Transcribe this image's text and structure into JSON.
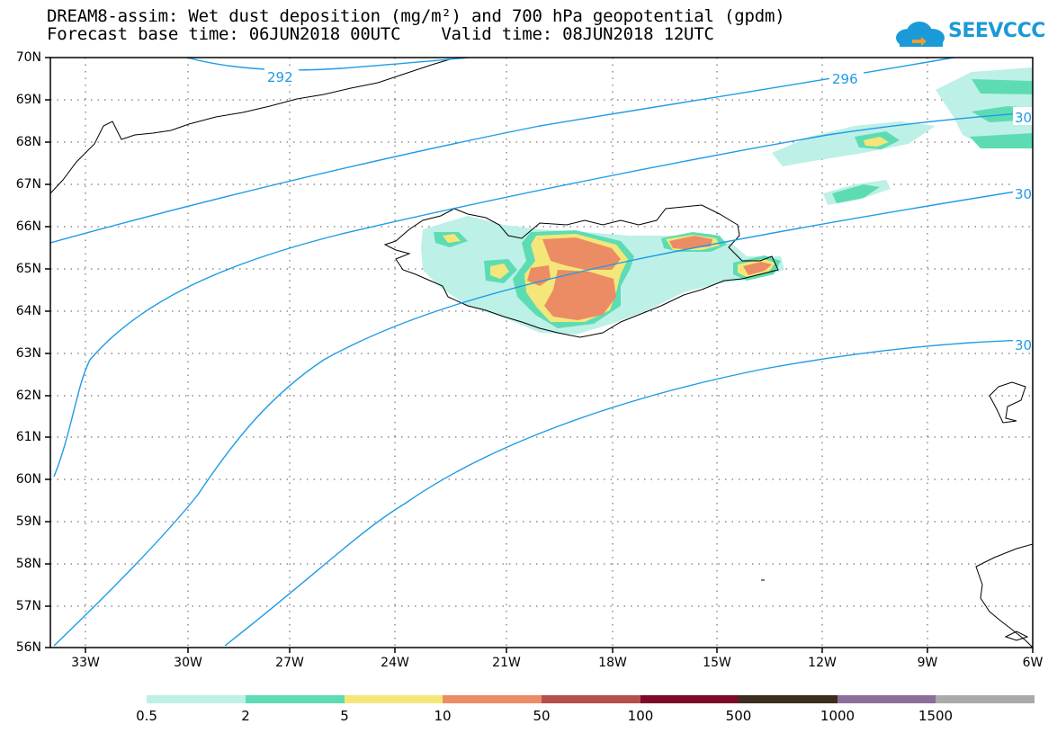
{
  "header": {
    "title_line1": "DREAM8-assim: Wet dust deposition (mg/m²) and 700 hPa geopotential (gpdm)",
    "title_line2": "Forecast base time: 06JUN2018 00UTC    Valid time: 08JUN2018 12UTC",
    "logo_text": "SEEVCCC"
  },
  "map": {
    "lat_labels": [
      "70N",
      "69N",
      "68N",
      "67N",
      "66N",
      "65N",
      "64N",
      "63N",
      "62N",
      "61N",
      "60N",
      "59N",
      "58N",
      "57N",
      "56N"
    ],
    "lon_labels": [
      "33W",
      "30W",
      "27W",
      "24W",
      "21W",
      "18W",
      "15W",
      "12W",
      "9W",
      "6W"
    ],
    "contour_labels": [
      "292",
      "296",
      "30",
      "30",
      "30"
    ],
    "contour_color": "#1e9be6"
  },
  "colorbar": {
    "labels": [
      "0.5",
      "2",
      "5",
      "10",
      "50",
      "100",
      "500",
      "1000",
      "1500"
    ],
    "colors": [
      "#bdf0e6",
      "#5ddcb4",
      "#f5e67a",
      "#eb8c64",
      "#b4504b",
      "#7d0a28",
      "#3c2d1e",
      "#8c6e9b",
      "#aaaaaa"
    ]
  }
}
